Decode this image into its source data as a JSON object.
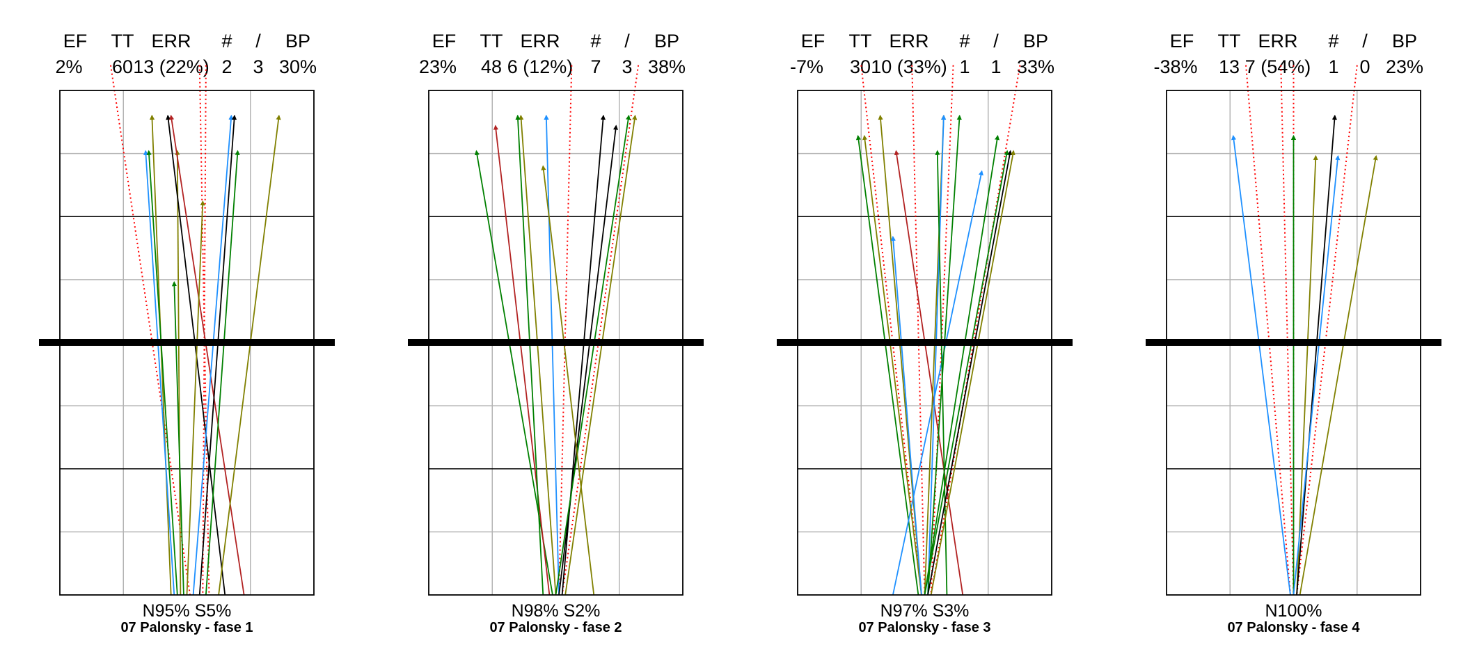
{
  "chart_data": [
    {
      "type": "trajectory-panel",
      "title": "07 Palonsky  - fase 1",
      "headers": [
        "EF",
        "TT",
        "ERR",
        "#",
        "/",
        "BP"
      ],
      "stats": [
        "2%",
        "60",
        "13 (22%)",
        "2",
        "3",
        "30%"
      ],
      "zone_labels": [
        "N95%",
        "S5%"
      ],
      "grid": true,
      "segments": [
        {
          "color": "#808000",
          "from": [
            -0.25,
            0
          ],
          "to": [
            -0.55,
            0.95
          ]
        },
        {
          "color": "#1e90ff",
          "from": [
            -0.2,
            0
          ],
          "to": [
            -0.65,
            0.88
          ]
        },
        {
          "color": "#008000",
          "from": [
            -0.15,
            0
          ],
          "to": [
            -0.6,
            0.88
          ]
        },
        {
          "color": "#808000",
          "from": [
            -0.1,
            0
          ],
          "to": [
            -0.15,
            0.88
          ]
        },
        {
          "color": "#000000",
          "from": [
            0.6,
            0
          ],
          "to": [
            -0.3,
            0.95
          ]
        },
        {
          "color": "#b22222",
          "from": [
            0.9,
            0
          ],
          "to": [
            -0.25,
            0.95
          ]
        },
        {
          "color": "#1e90ff",
          "from": [
            0.1,
            0
          ],
          "to": [
            0.7,
            0.95
          ]
        },
        {
          "color": "#000000",
          "from": [
            0.2,
            0
          ],
          "to": [
            0.75,
            0.95
          ]
        },
        {
          "color": "#808000",
          "from": [
            0.5,
            0
          ],
          "to": [
            1.45,
            0.95
          ]
        },
        {
          "color": "#008000",
          "from": [
            0.3,
            0
          ],
          "to": [
            0.8,
            0.88
          ]
        },
        {
          "color": "#808000",
          "from": [
            0.0,
            0
          ],
          "to": [
            0.25,
            0.78
          ]
        },
        {
          "color": "#008000",
          "from": [
            -0.05,
            0
          ],
          "to": [
            -0.2,
            0.62
          ]
        }
      ],
      "dotted_segments": [
        {
          "color": "#ff0000",
          "from": [
            -1.2,
            1.05
          ],
          "to": [
            0.05,
            0
          ]
        },
        {
          "color": "#ff0000",
          "from": [
            0.2,
            1.05
          ],
          "to": [
            0.35,
            0
          ]
        },
        {
          "color": "#ff0000",
          "from": [
            0.3,
            1.05
          ],
          "to": [
            0.25,
            0
          ]
        }
      ]
    },
    {
      "type": "trajectory-panel",
      "title": "07 Palonsky  - fase 2",
      "headers": [
        "EF",
        "TT",
        "ERR",
        "#",
        "/",
        "BP"
      ],
      "stats": [
        "23%",
        "48",
        "6 (12%)",
        "7",
        "3",
        "38%"
      ],
      "zone_labels": [
        "N98%",
        "S2%"
      ],
      "grid": true,
      "segments": [
        {
          "color": "#008000",
          "from": [
            -0.05,
            0
          ],
          "to": [
            -1.25,
            0.88
          ]
        },
        {
          "color": "#b22222",
          "from": [
            -0.1,
            0
          ],
          "to": [
            -0.95,
            0.93
          ]
        },
        {
          "color": "#808000",
          "from": [
            0.0,
            0
          ],
          "to": [
            -0.55,
            0.95
          ]
        },
        {
          "color": "#1e90ff",
          "from": [
            0.05,
            0
          ],
          "to": [
            -0.15,
            0.95
          ]
        },
        {
          "color": "#000000",
          "from": [
            0.1,
            0
          ],
          "to": [
            0.75,
            0.95
          ]
        },
        {
          "color": "#000000",
          "from": [
            0.05,
            0
          ],
          "to": [
            0.95,
            0.93
          ]
        },
        {
          "color": "#008000",
          "from": [
            0.0,
            0
          ],
          "to": [
            1.15,
            0.95
          ]
        },
        {
          "color": "#808000",
          "from": [
            0.15,
            0
          ],
          "to": [
            1.25,
            0.95
          ]
        },
        {
          "color": "#008000",
          "from": [
            -0.2,
            0
          ],
          "to": [
            -0.6,
            0.95
          ]
        },
        {
          "color": "#808000",
          "from": [
            0.6,
            0
          ],
          "to": [
            -0.2,
            0.85
          ]
        }
      ],
      "dotted_segments": [
        {
          "color": "#ff0000",
          "from": [
            0.25,
            1.05
          ],
          "to": [
            0.05,
            0
          ]
        },
        {
          "color": "#ff0000",
          "from": [
            1.3,
            1.05
          ],
          "to": [
            0.1,
            0
          ]
        }
      ]
    },
    {
      "type": "trajectory-panel",
      "title": "07 Palonsky  - fase 3",
      "headers": [
        "EF",
        "TT",
        "ERR",
        "#",
        "/",
        "BP"
      ],
      "stats": [
        "-7%",
        "30",
        "10 (33%)",
        "1",
        "1",
        "33%"
      ],
      "zone_labels": [
        "N97%",
        "S3%"
      ],
      "grid": true,
      "segments": [
        {
          "color": "#008000",
          "from": [
            -0.1,
            0
          ],
          "to": [
            -1.05,
            0.91
          ]
        },
        {
          "color": "#1e90ff",
          "from": [
            -0.5,
            0
          ],
          "to": [
            0.9,
            0.84
          ]
        },
        {
          "color": "#808000",
          "from": [
            -0.05,
            0
          ],
          "to": [
            -0.95,
            0.91
          ]
        },
        {
          "color": "#808000",
          "from": [
            -0.05,
            0
          ],
          "to": [
            -0.7,
            0.95
          ]
        },
        {
          "color": "#b22222",
          "from": [
            0.6,
            0
          ],
          "to": [
            -0.45,
            0.88
          ]
        },
        {
          "color": "#1e90ff",
          "from": [
            -0.05,
            0
          ],
          "to": [
            -0.5,
            0.71
          ]
        },
        {
          "color": "#808000",
          "from": [
            0.0,
            0
          ],
          "to": [
            0.3,
            0.95
          ]
        },
        {
          "color": "#1e90ff",
          "from": [
            0.05,
            0
          ],
          "to": [
            0.3,
            0.95
          ]
        },
        {
          "color": "#008000",
          "from": [
            0.35,
            0
          ],
          "to": [
            0.2,
            0.88
          ]
        },
        {
          "color": "#008000",
          "from": [
            0.05,
            0
          ],
          "to": [
            0.55,
            0.95
          ]
        },
        {
          "color": "#008000",
          "from": [
            0.0,
            0
          ],
          "to": [
            1.15,
            0.91
          ]
        },
        {
          "color": "#000000",
          "from": [
            0.05,
            0
          ],
          "to": [
            1.35,
            0.88
          ]
        },
        {
          "color": "#808000",
          "from": [
            0.1,
            0
          ],
          "to": [
            1.4,
            0.88
          ]
        },
        {
          "color": "#008000",
          "from": [
            0.0,
            0
          ],
          "to": [
            1.3,
            0.88
          ]
        }
      ],
      "dotted_segments": [
        {
          "color": "#ff0000",
          "from": [
            -1.0,
            1.05
          ],
          "to": [
            -0.05,
            0
          ]
        },
        {
          "color": "#ff0000",
          "from": [
            -0.2,
            1.05
          ],
          "to": [
            0.0,
            0
          ]
        },
        {
          "color": "#ff0000",
          "from": [
            0.45,
            1.05
          ],
          "to": [
            0.1,
            0
          ]
        },
        {
          "color": "#ff0000",
          "from": [
            1.5,
            1.05
          ],
          "to": [
            0.1,
            0
          ]
        }
      ]
    },
    {
      "type": "trajectory-panel",
      "title": "07 Palonsky  - fase 4",
      "headers": [
        "EF",
        "TT",
        "ERR",
        "#",
        "/",
        "BP"
      ],
      "stats": [
        "-38%",
        "13",
        "7 (54%)",
        "1",
        "0",
        "23%"
      ],
      "zone_labels": [
        "N100%"
      ],
      "grid": true,
      "segments": [
        {
          "color": "#1e90ff",
          "from": [
            -0.05,
            0
          ],
          "to": [
            -0.95,
            0.91
          ]
        },
        {
          "color": "#008000",
          "from": [
            0.0,
            0
          ],
          "to": [
            0.0,
            0.91
          ]
        },
        {
          "color": "#808000",
          "from": [
            0.05,
            0
          ],
          "to": [
            0.35,
            0.87
          ]
        },
        {
          "color": "#000000",
          "from": [
            0.05,
            0
          ],
          "to": [
            0.65,
            0.95
          ]
        },
        {
          "color": "#1e90ff",
          "from": [
            0.0,
            0
          ],
          "to": [
            0.7,
            0.87
          ]
        },
        {
          "color": "#808000",
          "from": [
            0.1,
            0
          ],
          "to": [
            1.3,
            0.87
          ]
        }
      ],
      "dotted_segments": [
        {
          "color": "#ff0000",
          "from": [
            -0.75,
            1.05
          ],
          "to": [
            -0.05,
            0
          ]
        },
        {
          "color": "#ff0000",
          "from": [
            -0.2,
            1.05
          ],
          "to": [
            0.0,
            0
          ]
        },
        {
          "color": "#ff0000",
          "from": [
            0.0,
            1.05
          ],
          "to": [
            0.0,
            0
          ]
        },
        {
          "color": "#ff0000",
          "from": [
            1.0,
            1.05
          ],
          "to": [
            0.05,
            0
          ]
        }
      ]
    }
  ]
}
